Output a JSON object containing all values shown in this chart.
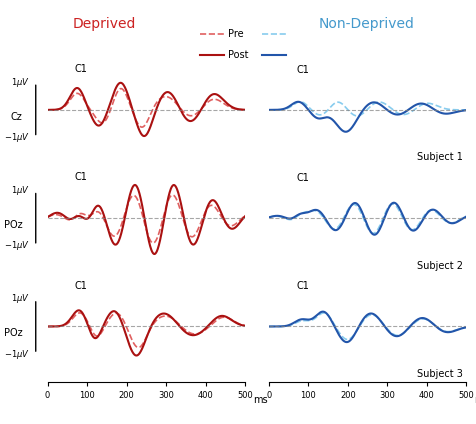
{
  "title_deprived": "Deprived",
  "title_nondeprived": "Non-Deprived",
  "title_deprived_color": "#cc2222",
  "title_nondeprived_color": "#4499cc",
  "pre_color_red": "#e06060",
  "post_color_red": "#aa1111",
  "pre_color_blue": "#88ccee",
  "post_color_blue": "#2255aa",
  "subjects": [
    "Subject 1",
    "Subject 2",
    "Subject 3"
  ],
  "electrode_left": [
    "Cz",
    "POz",
    "POz"
  ],
  "electrode_right": [
    "C1",
    "C1",
    "C1"
  ],
  "electrode_left_label": [
    "C1",
    "C1",
    "C1"
  ],
  "ylim": [
    -2.5,
    2.0
  ],
  "xlim": [
    0,
    500
  ],
  "background_color": "#ffffff",
  "fig_width": 4.76,
  "fig_height": 4.24
}
